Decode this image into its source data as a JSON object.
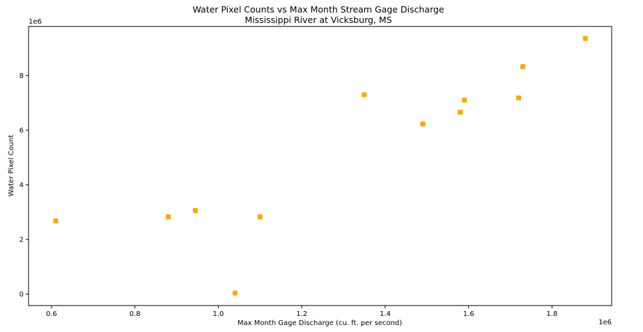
{
  "chart_data": {
    "type": "scatter",
    "title": "Water Pixel Counts vs Max Month Stream Gage Discharge",
    "subtitle": "Mississippi River at Vicksburg, MS",
    "xlabel": "Max Month Gage Discharge (cu. ft. per second)",
    "ylabel": "Water Pixel Count",
    "x_offset_label": "1e6",
    "y_offset_label": "1e6",
    "xlim": [
      0.545,
      1.943
    ],
    "ylim": [
      -0.42,
      9.8
    ],
    "x_ticks": [
      0.6,
      0.8,
      1.0,
      1.2,
      1.4,
      1.6,
      1.8
    ],
    "x_tick_labels": [
      "0.6",
      "0.8",
      "1.0",
      "1.2",
      "1.4",
      "1.6",
      "1.8"
    ],
    "y_ticks": [
      0,
      2,
      4,
      6,
      8
    ],
    "y_tick_labels": [
      "0",
      "2",
      "4",
      "6",
      "8"
    ],
    "grid": false,
    "marker_color": "#FFA500",
    "points": [
      {
        "x": 0.61,
        "y": 2.68
      },
      {
        "x": 0.88,
        "y": 2.83
      },
      {
        "x": 0.945,
        "y": 3.06
      },
      {
        "x": 1.04,
        "y": 0.04
      },
      {
        "x": 1.1,
        "y": 2.83
      },
      {
        "x": 1.35,
        "y": 7.3
      },
      {
        "x": 1.49,
        "y": 6.23
      },
      {
        "x": 1.58,
        "y": 6.66
      },
      {
        "x": 1.59,
        "y": 7.1
      },
      {
        "x": 1.72,
        "y": 7.18
      },
      {
        "x": 1.73,
        "y": 8.33
      },
      {
        "x": 1.88,
        "y": 9.36
      }
    ]
  }
}
